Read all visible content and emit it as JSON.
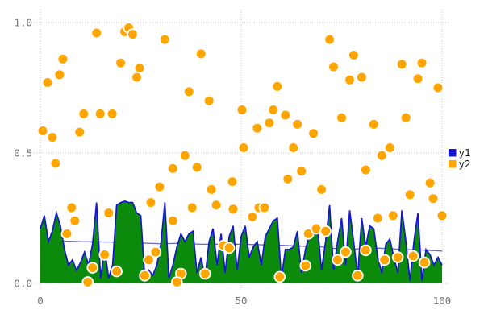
{
  "chart_data": {
    "type": "area+scatter",
    "title": "",
    "xlabel": "",
    "ylabel": "",
    "xlim": [
      0,
      100
    ],
    "ylim": [
      0,
      1
    ],
    "x_ticks": [
      "0",
      "50",
      "100"
    ],
    "x_tick_values": [
      0,
      50,
      100
    ],
    "y_ticks": [
      "0.0",
      "0.5",
      "1.0"
    ],
    "y_tick_values": [
      0,
      0.5,
      1
    ],
    "grid": {
      "style": "dotted",
      "color": "#c6c6c6"
    },
    "tick_label_color": "#757575",
    "background": "#ffffff",
    "legend": {
      "position": "right-middle",
      "text_color": "#1c1c1c",
      "entries": [
        {
          "label": "y1",
          "color": "#1515d3"
        },
        {
          "label": "y2",
          "color": "#ffa500"
        }
      ]
    },
    "series": [
      {
        "name": "y1",
        "type": "area",
        "stroke": "#1515d3",
        "fill": "#0b8a0b",
        "x_start": 0,
        "x_step": 1,
        "values": [
          0.21,
          0.26,
          0.16,
          0.2,
          0.27,
          0.22,
          0.13,
          0.07,
          0.09,
          0.05,
          0.08,
          0.12,
          0.07,
          0.15,
          0.31,
          0.02,
          0.13,
          0.02,
          0.07,
          0.3,
          0.31,
          0.315,
          0.31,
          0.31,
          0.27,
          0.26,
          0.02,
          0.05,
          0.03,
          0.07,
          0.15,
          0.31,
          0.02,
          0.07,
          0.14,
          0.19,
          0.16,
          0.19,
          0.2,
          0.04,
          0.1,
          0.02,
          0.16,
          0.21,
          0.07,
          0.19,
          0.04,
          0.18,
          0.22,
          0.05,
          0.18,
          0.22,
          0.1,
          0.14,
          0.16,
          0.07,
          0.18,
          0.21,
          0.24,
          0.25,
          0.02,
          0.13,
          0.13,
          0.14,
          0.2,
          0.04,
          0.13,
          0.19,
          0.21,
          0.22,
          0.05,
          0.16,
          0.3,
          0.05,
          0.16,
          0.25,
          0.07,
          0.28,
          0.16,
          0.03,
          0.25,
          0.14,
          0.22,
          0.21,
          0.1,
          0.04,
          0.15,
          0.17,
          0.1,
          0.04,
          0.28,
          0.16,
          0.01,
          0.16,
          0.27,
          0.01,
          0.13,
          0.11,
          0.07,
          0.1,
          0.07
        ]
      },
      {
        "name": "y1-smooth-line",
        "type": "line",
        "stroke": "#6666c8",
        "points": [
          [
            0,
            0.165
          ],
          [
            10,
            0.16
          ],
          [
            20,
            0.158
          ],
          [
            30,
            0.152
          ],
          [
            35,
            0.154
          ],
          [
            40,
            0.15
          ],
          [
            50,
            0.15
          ],
          [
            55,
            0.148
          ],
          [
            60,
            0.146
          ],
          [
            65,
            0.143
          ],
          [
            70,
            0.14
          ],
          [
            75,
            0.131
          ],
          [
            78,
            0.131
          ],
          [
            82,
            0.136
          ],
          [
            86,
            0.134
          ],
          [
            90,
            0.13
          ],
          [
            95,
            0.128
          ],
          [
            100,
            0.124
          ]
        ]
      },
      {
        "name": "y2",
        "type": "scatter",
        "fill": "#ffa500",
        "edge": "#ffffff",
        "points": [
          [
            14,
            0.96
          ],
          [
            21,
            0.965
          ],
          [
            22,
            0.98
          ],
          [
            23,
            0.955
          ],
          [
            31,
            0.935
          ],
          [
            40,
            0.88
          ],
          [
            5.6,
            0.86
          ],
          [
            20,
            0.845
          ],
          [
            24.7,
            0.825
          ],
          [
            4.8,
            0.8
          ],
          [
            24,
            0.79
          ],
          [
            1.8,
            0.77
          ],
          [
            37,
            0.735
          ],
          [
            42,
            0.7
          ],
          [
            10.8,
            0.65
          ],
          [
            14.9,
            0.65
          ],
          [
            17.9,
            0.65
          ],
          [
            0.6,
            0.585
          ],
          [
            3,
            0.56
          ],
          [
            9.8,
            0.58
          ],
          [
            36,
            0.49
          ],
          [
            50.6,
            0.52
          ],
          [
            50.2,
            0.665
          ],
          [
            72,
            0.935
          ],
          [
            78,
            0.875
          ],
          [
            73,
            0.83
          ],
          [
            77,
            0.78
          ],
          [
            80,
            0.79
          ],
          [
            90,
            0.84
          ],
          [
            95,
            0.845
          ],
          [
            94,
            0.785
          ],
          [
            99,
            0.75
          ],
          [
            59,
            0.755
          ],
          [
            58,
            0.665
          ],
          [
            61,
            0.645
          ],
          [
            57,
            0.615
          ],
          [
            54,
            0.595
          ],
          [
            64,
            0.61
          ],
          [
            68,
            0.575
          ],
          [
            75,
            0.635
          ],
          [
            83,
            0.61
          ],
          [
            91,
            0.635
          ],
          [
            63,
            0.52
          ],
          [
            87,
            0.52
          ],
          [
            85,
            0.49
          ],
          [
            3.8,
            0.46
          ],
          [
            7.8,
            0.29
          ],
          [
            8.6,
            0.24
          ],
          [
            6.6,
            0.19
          ],
          [
            17,
            0.27
          ],
          [
            16,
            0.11
          ],
          [
            13,
            0.06
          ],
          [
            11.8,
            0.005
          ],
          [
            19,
            0.046
          ],
          [
            27,
            0.09
          ],
          [
            28.7,
            0.12
          ],
          [
            26,
            0.03
          ],
          [
            33,
            0.44
          ],
          [
            39,
            0.445
          ],
          [
            29.7,
            0.37
          ],
          [
            27.5,
            0.31
          ],
          [
            33,
            0.24
          ],
          [
            37.8,
            0.29
          ],
          [
            42.6,
            0.36
          ],
          [
            43.8,
            0.3
          ],
          [
            47.8,
            0.39
          ],
          [
            48,
            0.285
          ],
          [
            45.6,
            0.145
          ],
          [
            47,
            0.136
          ],
          [
            35,
            0.037
          ],
          [
            34,
            0.005
          ],
          [
            41,
            0.037
          ],
          [
            65,
            0.43
          ],
          [
            61.6,
            0.4
          ],
          [
            70,
            0.36
          ],
          [
            81,
            0.435
          ],
          [
            54.4,
            0.29
          ],
          [
            55.8,
            0.29
          ],
          [
            52.8,
            0.255
          ],
          [
            92,
            0.34
          ],
          [
            97,
            0.385
          ],
          [
            97.8,
            0.325
          ],
          [
            84,
            0.25
          ],
          [
            87.8,
            0.26
          ],
          [
            100,
            0.26
          ],
          [
            66.7,
            0.19
          ],
          [
            68.7,
            0.21
          ],
          [
            71,
            0.2
          ],
          [
            74,
            0.09
          ],
          [
            76,
            0.12
          ],
          [
            81,
            0.127
          ],
          [
            66,
            0.068
          ],
          [
            79,
            0.03
          ],
          [
            59.6,
            0.025
          ],
          [
            85.7,
            0.09
          ],
          [
            89,
            0.1
          ],
          [
            92.8,
            0.105
          ],
          [
            95.6,
            0.08
          ]
        ]
      }
    ]
  }
}
